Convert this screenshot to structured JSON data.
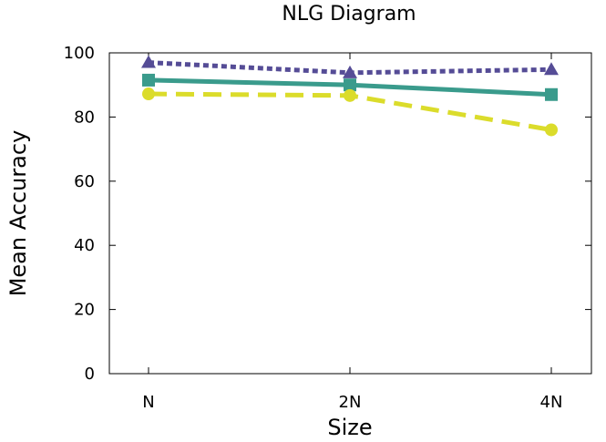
{
  "chart_data": {
    "type": "line",
    "title": "NLG Diagram",
    "xlabel": "Size",
    "ylabel": "Mean Accuracy",
    "categories": [
      "N",
      "2N",
      "4N"
    ],
    "ylim": [
      0,
      100
    ],
    "yticks": [
      "0",
      "20",
      "40",
      "60",
      "80",
      "100"
    ],
    "grid": false,
    "legend": "none",
    "series": [
      {
        "values": [
          97.0,
          93.8,
          94.8
        ],
        "color": "#554c96",
        "marker": "triangle",
        "dash": "dotted"
      },
      {
        "values": [
          91.5,
          90.0,
          87.0
        ],
        "color": "#3a9b8c",
        "marker": "square",
        "dash": "solid"
      },
      {
        "values": [
          87.2,
          86.7,
          76.0
        ],
        "color": "#dbdc2b",
        "marker": "circle",
        "dash": "dashed"
      }
    ]
  }
}
